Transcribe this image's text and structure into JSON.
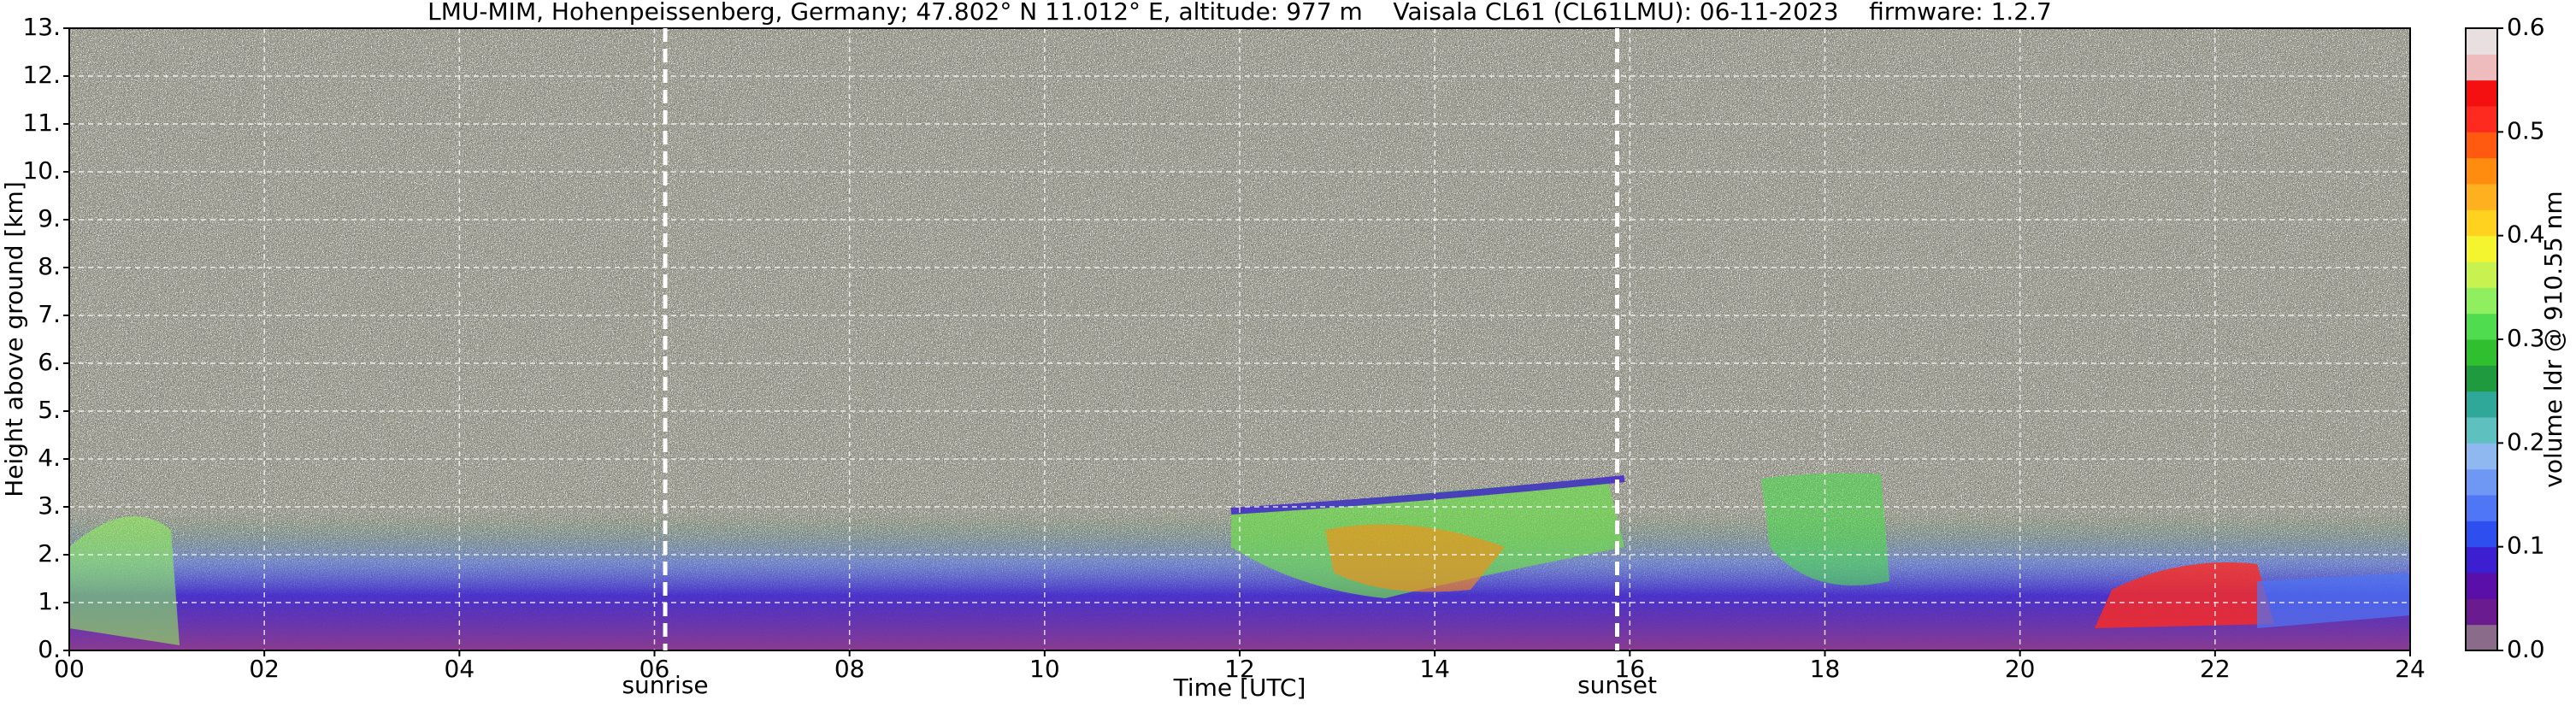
{
  "chart_data": {
    "type": "heatmap",
    "title": "LMU-MIM, Hohenpeissenberg, Germany; 47.802° N 11.012° E, altitude: 977 m    Vaisala CL61 (CL61LMU): 06-11-2023    firmware: 1.2.7",
    "xlabel": "Time [UTC]",
    "ylabel": "Height above ground [km]",
    "xlim": [
      0,
      24
    ],
    "xticks": [
      {
        "value": 0,
        "label": "00"
      },
      {
        "value": 2,
        "label": "02"
      },
      {
        "value": 4,
        "label": "04"
      },
      {
        "value": 6,
        "label": "06"
      },
      {
        "value": 8,
        "label": "08"
      },
      {
        "value": 10,
        "label": "10"
      },
      {
        "value": 12,
        "label": "12"
      },
      {
        "value": 14,
        "label": "14"
      },
      {
        "value": 16,
        "label": "16"
      },
      {
        "value": 18,
        "label": "18"
      },
      {
        "value": 20,
        "label": "20"
      },
      {
        "value": 22,
        "label": "22"
      },
      {
        "value": 24,
        "label": "24"
      }
    ],
    "ylim": [
      0,
      13
    ],
    "yticks": [
      {
        "value": 0,
        "label": "0."
      },
      {
        "value": 1,
        "label": "1."
      },
      {
        "value": 2,
        "label": "2."
      },
      {
        "value": 3,
        "label": "3."
      },
      {
        "value": 4,
        "label": "4."
      },
      {
        "value": 5,
        "label": "5."
      },
      {
        "value": 6,
        "label": "6."
      },
      {
        "value": 7,
        "label": "7."
      },
      {
        "value": 8,
        "label": "8."
      },
      {
        "value": 9,
        "label": "9."
      },
      {
        "value": 10,
        "label": "10."
      },
      {
        "value": 11,
        "label": "11."
      },
      {
        "value": 12,
        "label": "12."
      },
      {
        "value": 13,
        "label": "13."
      }
    ],
    "grid": true,
    "annotations": [
      {
        "label": "sunrise",
        "x": 6.11
      },
      {
        "label": "sunset",
        "x": 15.87
      }
    ],
    "colorbar": {
      "label": "volume ldr @ 910.55 nm",
      "lim": [
        0,
        0.6
      ],
      "ticks": [
        {
          "value": 0,
          "label": "0.0"
        },
        0.1,
        0.2,
        0.3,
        0.4,
        0.5,
        0.6
      ],
      "colors": [
        "#8a6b8a",
        "#6a1b8f",
        "#5a0fa8",
        "#3b1fd0",
        "#2f4ef0",
        "#4f76f5",
        "#6f98f5",
        "#8fb8f0",
        "#5fc0c0",
        "#2fa89a",
        "#1f9a3f",
        "#2fbf2f",
        "#4fdc4f",
        "#8fef5f",
        "#c8f24f",
        "#f5f52f",
        "#ffd21f",
        "#ffb01f",
        "#ff8c0f",
        "#ff5a0f",
        "#ff2a1f",
        "#f41010",
        "#eebcbc",
        "#e8e0e0"
      ]
    }
  }
}
